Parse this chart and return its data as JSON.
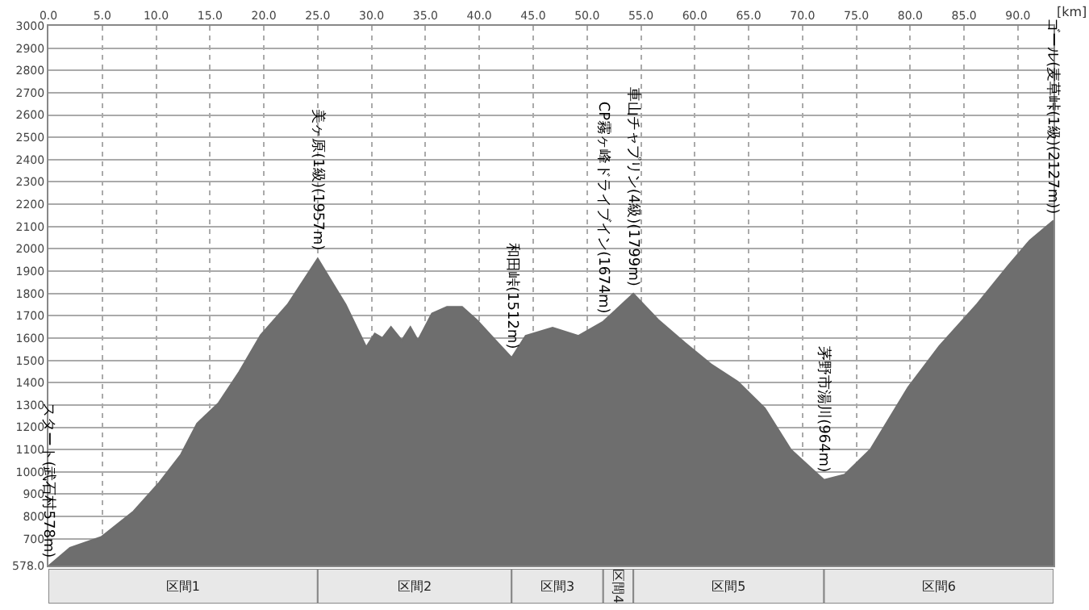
{
  "chart_data": {
    "type": "area",
    "xlabel": "[km]",
    "x": [
      0,
      2,
      4.9,
      7.9,
      10.3,
      12.3,
      13.8,
      15.8,
      17.7,
      19.7,
      22.2,
      25,
      27.6,
      29.5,
      30.3,
      31,
      31.8,
      32.8,
      33.6,
      34.3,
      35.6,
      37,
      38.4,
      39.8,
      41.5,
      43,
      44.3,
      46.8,
      49.2,
      51.5,
      54.3,
      56.6,
      59.1,
      61.5,
      64,
      66.5,
      68.9,
      72,
      73.9,
      76.3,
      79.8,
      82.7,
      86.2,
      89.1,
      91.1,
      93.3
    ],
    "series": [
      {
        "color": "#6e6e6e",
        "values": [
          578,
          660,
          708,
          823,
          953,
          1078,
          1217,
          1309,
          1448,
          1613,
          1750,
          1957,
          1750,
          1560,
          1620,
          1600,
          1650,
          1590,
          1650,
          1590,
          1710,
          1740,
          1740,
          1680,
          1590,
          1512,
          1610,
          1647,
          1610,
          1674,
          1799,
          1682,
          1578,
          1483,
          1404,
          1286,
          1101,
          964,
          988,
          1101,
          1379,
          1564,
          1752,
          1925,
          2038,
          2127
        ]
      }
    ],
    "xlim": [
      0,
      93.3
    ],
    "xticks": [
      {
        "value": 0,
        "label": "0.0"
      },
      {
        "value": 5,
        "label": "5.0"
      },
      {
        "value": 10,
        "label": "10.0"
      },
      {
        "value": 15,
        "label": "15.0"
      },
      {
        "value": 20,
        "label": "20.0"
      },
      {
        "value": 25,
        "label": "25.0"
      },
      {
        "value": 30,
        "label": "30.0"
      },
      {
        "value": 35,
        "label": "35.0"
      },
      {
        "value": 40,
        "label": "40.0"
      },
      {
        "value": 45,
        "label": "45.0"
      },
      {
        "value": 50,
        "label": "50.0"
      },
      {
        "value": 55,
        "label": "55.0"
      },
      {
        "value": 60,
        "label": "60.0"
      },
      {
        "value": 65,
        "label": "65.0"
      },
      {
        "value": 70,
        "label": "70.0"
      },
      {
        "value": 75,
        "label": "75.0"
      },
      {
        "value": 80,
        "label": "80.0"
      },
      {
        "value": 85,
        "label": "85.0"
      },
      {
        "value": 90,
        "label": "90.0"
      }
    ],
    "ylim": [
      578,
      3000
    ],
    "yticks": [
      {
        "value": 578,
        "label": "578.0"
      },
      700,
      800,
      900,
      1000,
      1100,
      1200,
      1300,
      1400,
      1500,
      1600,
      1700,
      1800,
      1900,
      2000,
      2100,
      2200,
      2300,
      2400,
      2500,
      2600,
      2700,
      2800,
      2900,
      3000
    ],
    "grid": true,
    "annotations": [
      {
        "text": "スタート(武石村578m)",
        "x": 0,
        "y": 578
      },
      {
        "text": "美ヶ原(1級)(1957m)",
        "x": 25,
        "y": 1957
      },
      {
        "text": "和田峠(1512m)",
        "x": 43,
        "y": 1512
      },
      {
        "text": "CP霧ヶ峰ドライブイン(1674m)",
        "x": 51.5,
        "y": 1674
      },
      {
        "text": "車山チャプリン(4級)(1799m)",
        "x": 54.3,
        "y": 1799
      },
      {
        "text": "茅野市湯川(964m)",
        "x": 72,
        "y": 964
      },
      {
        "text": "ゴール(麦草峠(1級)(2127m))",
        "x": 93.3,
        "y": 2127
      },
      "区間1",
      "区間2",
      "区間3",
      "区間4",
      "区間5",
      "区間6"
    ]
  }
}
